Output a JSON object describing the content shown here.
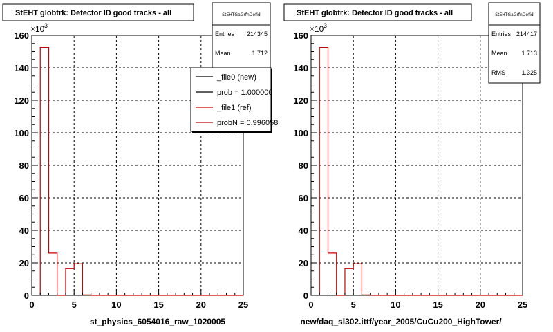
{
  "chart_data": [
    {
      "type": "bar",
      "title": "StEHT globtrk: Detector ID good tracks - all",
      "xlabel": "st_physics_6054016_raw_1020005",
      "ylabel": "",
      "y_exponent_label": "×10",
      "y_exponent_power": "3",
      "xlim": [
        0,
        25
      ],
      "ylim": [
        0,
        160
      ],
      "x_ticks": [
        "0",
        "5",
        "10",
        "15",
        "20",
        "25"
      ],
      "y_ticks": [
        "0",
        "20",
        "40",
        "60",
        "80",
        "100",
        "120",
        "140",
        "160"
      ],
      "grid": true,
      "series": [
        {
          "name": "_file1 (ref)",
          "color": "#cc0000",
          "x": [
            1,
            2,
            3,
            4,
            5,
            6,
            7,
            8,
            9,
            10,
            11,
            12,
            13,
            14,
            15,
            16,
            17,
            18,
            19,
            20,
            21,
            22,
            23,
            24
          ],
          "values": [
            152.5,
            26,
            0,
            16.5,
            19.5,
            0.3,
            0,
            0,
            0,
            0,
            0,
            0,
            0,
            0,
            0,
            0,
            0,
            0,
            0,
            0,
            0,
            0,
            0,
            0
          ]
        }
      ],
      "stats": {
        "name": "StEHTGaGrfnDefid",
        "entries_label": "Entries",
        "entries_value": "214345",
        "mean_label": "Mean",
        "mean_value": "1.712"
      },
      "legend": {
        "placement": "top-right",
        "entries": [
          {
            "label": "_file0 (new)",
            "color": "#000000"
          },
          {
            "label": "prob = 1.000000",
            "color": "#000000"
          },
          {
            "label": "_file1 (ref)",
            "color": "#cc0000"
          },
          {
            "label": "probN = 0.996058",
            "color": "#cc0000"
          }
        ]
      }
    },
    {
      "type": "bar",
      "title": "StEHT globtrk: Detector ID good tracks - all",
      "xlabel": "new/daq_sl302.ittf/year_2005/CuCu200_HighTower/",
      "ylabel": "",
      "y_exponent_label": "×10",
      "y_exponent_power": "3",
      "xlim": [
        0,
        25
      ],
      "ylim": [
        0,
        160
      ],
      "x_ticks": [
        "0",
        "5",
        "10",
        "15",
        "20",
        "25"
      ],
      "y_ticks": [
        "0",
        "20",
        "40",
        "60",
        "80",
        "100",
        "120",
        "140",
        "160"
      ],
      "grid": true,
      "series": [
        {
          "color": "#cc0000",
          "x": [
            1,
            2,
            3,
            4,
            5,
            6,
            7,
            8,
            9,
            10,
            11,
            12,
            13,
            14,
            15,
            16,
            17,
            18,
            19,
            20,
            21,
            22,
            23,
            24
          ],
          "values": [
            152.5,
            26,
            0,
            16.5,
            19.5,
            0.3,
            0,
            0,
            0,
            0,
            0,
            0,
            0,
            0,
            0,
            0,
            0,
            0,
            0,
            0,
            0,
            0,
            0,
            0
          ]
        }
      ],
      "stats": {
        "name": "StEHTGaGrfnDefid",
        "entries_label": "Entries",
        "entries_value": "214417",
        "mean_label": "Mean",
        "mean_value": "1.713",
        "rms_label": "RMS",
        "rms_value": "1.325"
      }
    }
  ]
}
